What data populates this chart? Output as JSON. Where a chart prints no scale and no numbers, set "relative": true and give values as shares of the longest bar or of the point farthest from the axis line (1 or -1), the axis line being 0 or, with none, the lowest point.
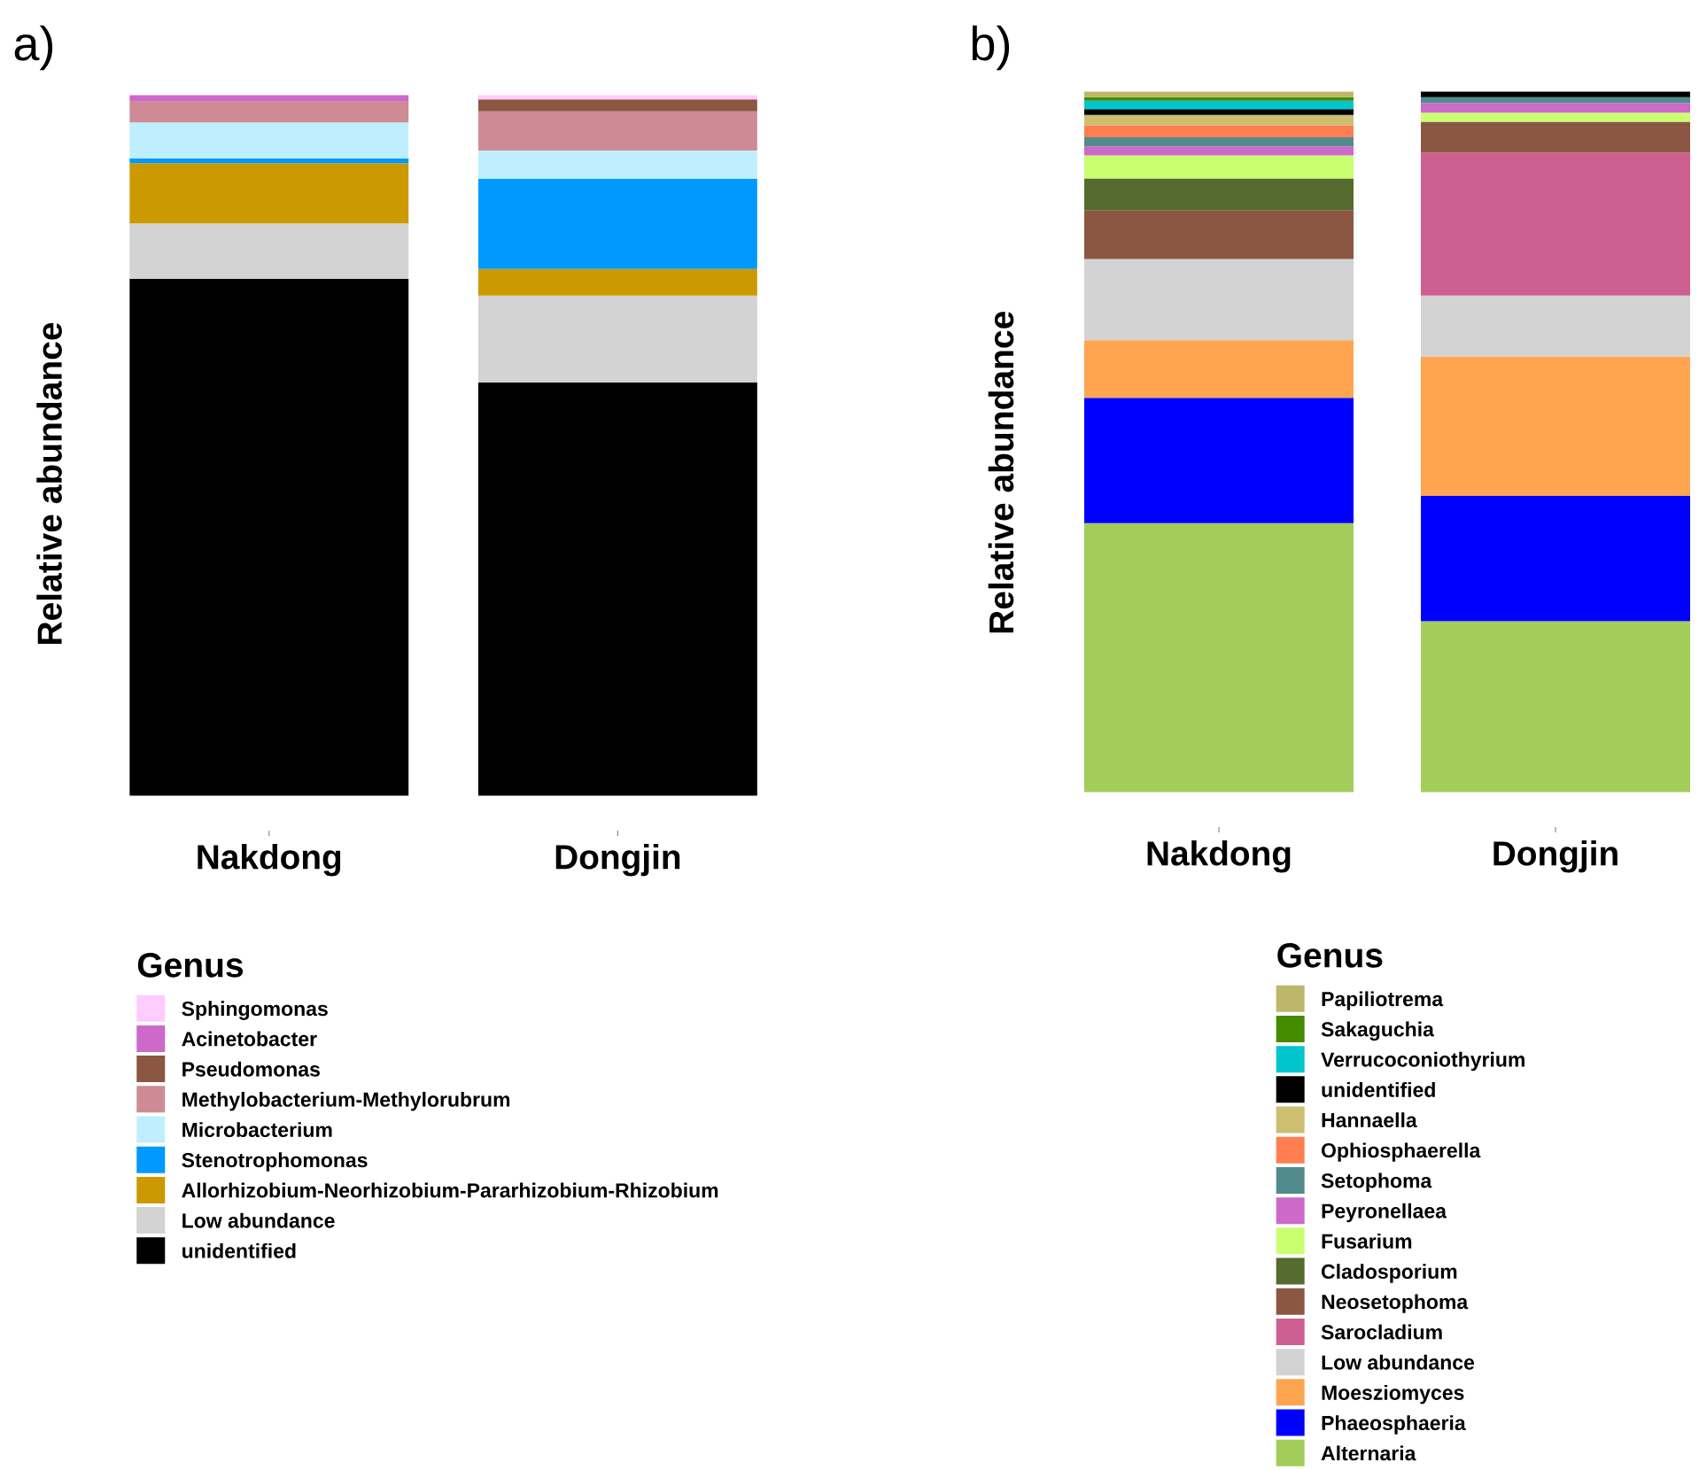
{
  "chart_data": [
    {
      "type": "bar",
      "title": "a)",
      "ylabel": "Relative abundance",
      "legend_title": "Genus",
      "categories": [
        "Nakdong",
        "Dongjin"
      ],
      "stacked": true,
      "relative": true,
      "legend": "bottom",
      "series": [
        {
          "name": "unidentified",
          "color": "#000000",
          "values": [
            0.738,
            0.59
          ]
        },
        {
          "name": "Low abundance",
          "color": "#D3D3D3",
          "values": [
            0.079,
            0.124
          ]
        },
        {
          "name": "Allorhizobium-Neorhizobium-Pararhizobium-Rhizobium",
          "color": "#CC9900",
          "values": [
            0.086,
            0.038
          ]
        },
        {
          "name": "Stenotrophomonas",
          "color": "#0099FF",
          "values": [
            0.007,
            0.129
          ]
        },
        {
          "name": "Microbacterium",
          "color": "#BFEFFF",
          "values": [
            0.051,
            0.04
          ]
        },
        {
          "name": "Methylobacterium-Methylorubrum",
          "color": "#CD8C95",
          "values": [
            0.03,
            0.056
          ]
        },
        {
          "name": "Pseudomonas",
          "color": "#8B5742",
          "values": [
            0,
            0.017
          ]
        },
        {
          "name": "Acinetobacter",
          "color": "#CD69C9",
          "values": [
            0.009,
            0
          ]
        },
        {
          "name": "Sphingomonas",
          "color": "#FFCCFF",
          "values": [
            0,
            0.006
          ]
        }
      ]
    },
    {
      "type": "bar",
      "title": "b)",
      "ylabel": "Relative abundance",
      "legend_title": "Genus",
      "categories": [
        "Nakdong",
        "Dongjin"
      ],
      "stacked": true,
      "relative": true,
      "legend": "bottom",
      "series": [
        {
          "name": "Alternaria",
          "color": "#A2CD5A",
          "values": [
            0.384,
            0.244
          ]
        },
        {
          "name": "Phaeosphaeria",
          "color": "#0000FF",
          "values": [
            0.179,
            0.179
          ]
        },
        {
          "name": "Moesziomyces",
          "color": "#FFA54F",
          "values": [
            0.082,
            0.199
          ]
        },
        {
          "name": "Low abundance",
          "color": "#D3D3D3",
          "values": [
            0.116,
            0.087
          ]
        },
        {
          "name": "Sarocladium",
          "color": "#CD6090",
          "values": [
            0,
            0.204
          ]
        },
        {
          "name": "Neosetophoma",
          "color": "#8B5742",
          "values": [
            0.07,
            0.044
          ]
        },
        {
          "name": "Cladosporium",
          "color": "#556B2F",
          "values": [
            0.045,
            0
          ]
        },
        {
          "name": "Fusarium",
          "color": "#CAFF70",
          "values": [
            0.033,
            0.013
          ]
        },
        {
          "name": "Peyronellaea",
          "color": "#CD69C9",
          "values": [
            0.013,
            0.014
          ]
        },
        {
          "name": "Setophoma",
          "color": "#528B8B",
          "values": [
            0.013,
            0.008
          ]
        },
        {
          "name": "Ophiosphaerella",
          "color": "#FF7F50",
          "values": [
            0.017,
            0
          ]
        },
        {
          "name": "Hannaella",
          "color": "#CDBE70",
          "values": [
            0.015,
            0
          ]
        },
        {
          "name": "unidentified",
          "color": "#000000",
          "values": [
            0.008,
            0.008
          ]
        },
        {
          "name": "Verrucoconiothyrium",
          "color": "#00C5CD",
          "values": [
            0.012,
            0
          ]
        },
        {
          "name": "Sakaguchia",
          "color": "#458B00",
          "values": [
            0.005,
            0
          ]
        },
        {
          "name": "Papiliotrema",
          "color": "#BDB76B",
          "values": [
            0.008,
            0
          ]
        }
      ]
    }
  ]
}
